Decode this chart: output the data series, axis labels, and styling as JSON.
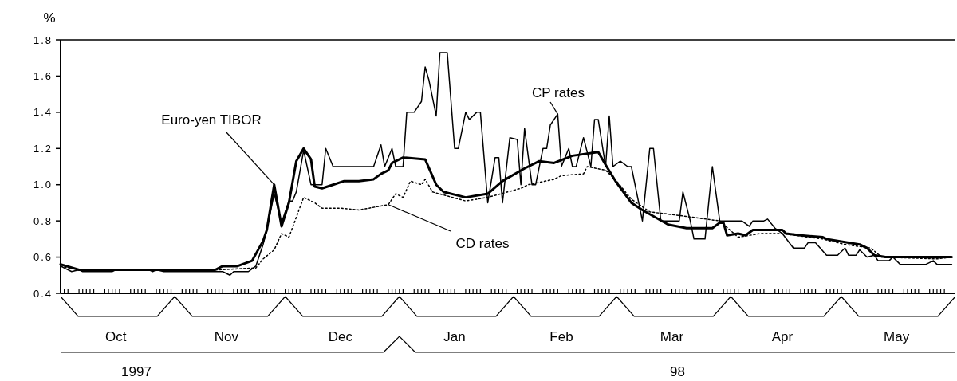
{
  "chart_data": {
    "type": "line",
    "ylabel": "%",
    "xlim": [
      "1997-10-01",
      "1998-06-01"
    ],
    "ylim": [
      0.4,
      1.8
    ],
    "yticks": [
      0.4,
      0.6,
      0.8,
      {
        "value": 1.0,
        "label": "1.0"
      },
      1.2,
      1.4,
      1.6,
      1.8
    ],
    "xticks": [
      {
        "value": "1997-10-16",
        "label": "Oct"
      },
      {
        "value": "1997-11-15",
        "label": "Nov"
      },
      {
        "value": "1997-12-16",
        "label": "Dec"
      },
      {
        "value": "1998-01-16",
        "label": "Jan"
      },
      {
        "value": "1998-02-14",
        "label": "Feb"
      },
      {
        "value": "1998-03-16",
        "label": "Mar"
      },
      {
        "value": "1998-04-15",
        "label": "Apr"
      },
      {
        "value": "1998-05-16",
        "label": "May"
      }
    ],
    "annotations": [
      "1997",
      "98"
    ],
    "grid": false,
    "series": [
      {
        "name": "Euro-yen TIBOR",
        "color": "#000000",
        "line_style": "solid",
        "x": [
          "1997-10-01",
          "1997-10-06",
          "1997-11-12",
          "1997-11-14",
          "1997-11-18",
          "1997-11-22",
          "1997-11-25",
          "1997-11-26",
          "1997-11-28",
          "1997-11-30",
          "1997-12-02",
          "1997-12-04",
          "1997-12-06",
          "1997-12-08",
          "1997-12-09",
          "1997-12-11",
          "1997-12-14",
          "1997-12-17",
          "1997-12-21",
          "1997-12-25",
          "1997-12-27",
          "1997-12-29",
          "1997-12-30",
          "1998-01-02",
          "1998-01-08",
          "1998-01-11",
          "1998-01-13",
          "1998-01-19",
          "1998-01-25",
          "1998-01-29",
          "1998-02-04",
          "1998-02-08",
          "1998-02-12",
          "1998-02-17",
          "1998-02-24",
          "1998-02-26",
          "1998-03-01",
          "1998-03-05",
          "1998-03-08",
          "1998-03-15",
          "1998-03-20",
          "1998-03-25",
          "1998-03-27",
          "1998-03-29",
          "1998-03-30",
          "1998-03-31",
          "1998-04-03",
          "1998-04-05",
          "1998-04-07",
          "1998-04-15",
          "1998-04-16",
          "1998-04-20",
          "1998-04-26",
          "1998-04-27",
          "1998-05-03",
          "1998-05-06",
          "1998-05-08",
          "1998-05-10",
          "1998-05-13",
          "1998-05-31"
        ],
        "values": [
          0.56,
          0.53,
          0.53,
          0.55,
          0.55,
          0.58,
          0.69,
          0.75,
          1.0,
          0.77,
          0.9,
          1.13,
          1.2,
          1.14,
          0.99,
          0.98,
          1.0,
          1.02,
          1.02,
          1.03,
          1.06,
          1.08,
          1.12,
          1.15,
          1.14,
          1.0,
          0.96,
          0.93,
          0.95,
          1.02,
          1.09,
          1.13,
          1.12,
          1.16,
          1.18,
          1.11,
          1.01,
          0.9,
          0.86,
          0.78,
          0.76,
          0.76,
          0.76,
          0.79,
          0.79,
          0.72,
          0.73,
          0.72,
          0.75,
          0.75,
          0.73,
          0.72,
          0.71,
          0.7,
          0.68,
          0.67,
          0.65,
          0.61,
          0.6,
          0.6
        ]
      },
      {
        "name": "CP rates",
        "color": "#000000",
        "line_style": "solid",
        "x": [
          "1997-10-01",
          "1997-10-04",
          "1997-10-06",
          "1997-10-07",
          "1997-10-15",
          "1997-10-16",
          "1997-10-25",
          "1997-10-26",
          "1997-10-27",
          "1997-10-29",
          "1997-11-14",
          "1997-11-16",
          "1997-11-17",
          "1997-11-21",
          "1997-11-23",
          "1997-11-25",
          "1997-11-26",
          "1997-11-28",
          "1997-11-30",
          "1997-12-02",
          "1997-12-03",
          "1997-12-04",
          "1997-12-06",
          "1997-12-08",
          "1997-12-11",
          "1997-12-12",
          "1997-12-14",
          "1997-12-25",
          "1997-12-27",
          "1997-12-28",
          "1997-12-30",
          "1997-12-31",
          "1998-01-02",
          "1998-01-03",
          "1998-01-05",
          "1998-01-07",
          "1998-01-08",
          "1998-01-09",
          "1998-01-11",
          "1998-01-12",
          "1998-01-14",
          "1998-01-16",
          "1998-01-17",
          "1998-01-19",
          "1998-01-20",
          "1998-01-22",
          "1998-01-23",
          "1998-01-25",
          "1998-01-27",
          "1998-01-28",
          "1998-01-29",
          "1998-01-31",
          "1998-02-02",
          "1998-02-03",
          "1998-02-04",
          "1998-02-06",
          "1998-02-07",
          "1998-02-09",
          "1998-02-10",
          "1998-02-11",
          "1998-02-13",
          "1998-02-14",
          "1998-02-16",
          "1998-02-17",
          "1998-02-18",
          "1998-02-20",
          "1998-02-22",
          "1998-02-23",
          "1998-02-24",
          "1998-02-26",
          "1998-02-27",
          "1998-02-28",
          "1998-03-02",
          "1998-03-04",
          "1998-03-05",
          "1998-03-08",
          "1998-03-10",
          "1998-03-11",
          "1998-03-13",
          "1998-03-18",
          "1998-03-19",
          "1998-03-21",
          "1998-03-22",
          "1998-03-25",
          "1998-03-27",
          "1998-03-29",
          "1998-04-04",
          "1998-04-06",
          "1998-04-07",
          "1998-04-10",
          "1998-04-11",
          "1998-04-13",
          "1998-04-15",
          "1998-04-18",
          "1998-04-21",
          "1998-04-22",
          "1998-04-24",
          "1998-04-27",
          "1998-04-30",
          "1998-05-02",
          "1998-05-03",
          "1998-05-05",
          "1998-05-06",
          "1998-05-08",
          "1998-05-10",
          "1998-05-11",
          "1998-05-14",
          "1998-05-15",
          "1998-05-17",
          "1998-05-24",
          "1998-05-26",
          "1998-05-27",
          "1998-05-31"
        ],
        "values": [
          0.55,
          0.52,
          0.53,
          0.52,
          0.52,
          0.53,
          0.53,
          0.52,
          0.53,
          0.52,
          0.52,
          0.5,
          0.52,
          0.52,
          0.55,
          0.67,
          0.75,
          0.95,
          0.79,
          0.91,
          0.91,
          0.96,
          1.19,
          1.0,
          1.0,
          1.2,
          1.1,
          1.1,
          1.22,
          1.1,
          1.2,
          1.1,
          1.1,
          1.4,
          1.4,
          1.46,
          1.65,
          1.58,
          1.38,
          1.73,
          1.73,
          1.2,
          1.2,
          1.4,
          1.36,
          1.4,
          1.4,
          0.9,
          1.15,
          1.15,
          0.9,
          1.26,
          1.25,
          1.0,
          1.31,
          1.0,
          1.0,
          1.2,
          1.2,
          1.33,
          1.39,
          1.1,
          1.2,
          1.1,
          1.1,
          1.26,
          1.1,
          1.36,
          1.36,
          1.1,
          1.38,
          1.1,
          1.13,
          1.1,
          1.1,
          0.8,
          1.2,
          1.2,
          0.8,
          0.8,
          0.96,
          0.8,
          0.7,
          0.7,
          1.1,
          0.8,
          0.8,
          0.77,
          0.8,
          0.8,
          0.81,
          0.76,
          0.73,
          0.65,
          0.65,
          0.68,
          0.68,
          0.61,
          0.61,
          0.65,
          0.61,
          0.61,
          0.64,
          0.6,
          0.61,
          0.58,
          0.58,
          0.6,
          0.56,
          0.56,
          0.58,
          0.56,
          0.56
        ]
      },
      {
        "name": "CD rates",
        "color": "#000000",
        "line_style": "dotted",
        "x": [
          "1997-10-01",
          "1997-10-06",
          "1997-11-13",
          "1997-11-23",
          "1997-11-25",
          "1997-11-28",
          "1997-11-30",
          "1997-12-02",
          "1997-12-06",
          "1997-12-09",
          "1997-12-11",
          "1997-12-16",
          "1997-12-21",
          "1997-12-29",
          "1997-12-31",
          "1998-01-02",
          "1998-01-04",
          "1998-01-07",
          "1998-01-08",
          "1998-01-10",
          "1998-01-19",
          "1998-01-25",
          "1998-02-03",
          "1998-02-05",
          "1998-02-12",
          "1998-02-14",
          "1998-02-20",
          "1998-02-21",
          "1998-02-26",
          "1998-03-01",
          "1998-03-05",
          "1998-03-10",
          "1998-03-18",
          "1998-03-29",
          "1998-04-03",
          "1998-04-09",
          "1998-04-15",
          "1998-04-26",
          "1998-05-02",
          "1998-05-09",
          "1998-05-12",
          "1998-05-27",
          "1998-05-31"
        ],
        "values": [
          0.55,
          0.53,
          0.53,
          0.54,
          0.59,
          0.64,
          0.73,
          0.71,
          0.93,
          0.9,
          0.87,
          0.87,
          0.86,
          0.89,
          0.95,
          0.93,
          1.02,
          1.0,
          1.03,
          0.96,
          0.91,
          0.93,
          0.98,
          1.0,
          1.03,
          1.05,
          1.06,
          1.1,
          1.08,
          1.02,
          0.92,
          0.85,
          0.83,
          0.8,
          0.71,
          0.73,
          0.73,
          0.7,
          0.67,
          0.65,
          0.6,
          0.59,
          0.6
        ]
      }
    ]
  }
}
